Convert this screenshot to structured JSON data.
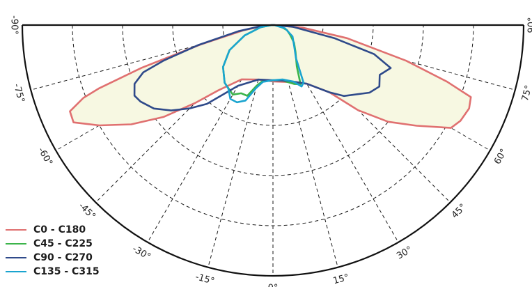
{
  "chart_data": {
    "type": "polar",
    "title": "",
    "angle_labels": [
      {
        "deg": -90,
        "text": "-90°"
      },
      {
        "deg": -75,
        "text": "-75°"
      },
      {
        "deg": -60,
        "text": "-60°"
      },
      {
        "deg": -45,
        "text": "-45°"
      },
      {
        "deg": -30,
        "text": "-30°"
      },
      {
        "deg": -15,
        "text": "-15°"
      },
      {
        "deg": 0,
        "text": "0°"
      },
      {
        "deg": 15,
        "text": "15°"
      },
      {
        "deg": 30,
        "text": "30°"
      },
      {
        "deg": 45,
        "text": "45°"
      },
      {
        "deg": 60,
        "text": "60°"
      },
      {
        "deg": 75,
        "text": "75°"
      },
      {
        "deg": 90,
        "text": "90°"
      }
    ],
    "grid": true,
    "legend_position": "bottom-left",
    "series": [
      {
        "name": "C0 - C180",
        "color": "#e07070",
        "fill": "#f7f8e2",
        "points": [
          [
            -90,
            0.005
          ],
          [
            -85,
            0.04
          ],
          [
            -80,
            0.12
          ],
          [
            -75,
            0.3
          ],
          [
            -72,
            0.55
          ],
          [
            -70,
            0.74
          ],
          [
            -69,
            0.81
          ],
          [
            -67,
            0.88
          ],
          [
            -64,
            0.885
          ],
          [
            -60,
            0.8
          ],
          [
            -55,
            0.69
          ],
          [
            -50,
            0.57
          ],
          [
            -45,
            0.44
          ],
          [
            -40,
            0.34
          ],
          [
            -30,
            0.25
          ],
          [
            -15,
            0.225
          ],
          [
            0,
            0.225
          ],
          [
            15,
            0.235
          ],
          [
            30,
            0.27
          ],
          [
            40,
            0.35
          ],
          [
            45,
            0.48
          ],
          [
            50,
            0.6
          ],
          [
            55,
            0.7
          ],
          [
            60,
            0.82
          ],
          [
            63,
            0.84
          ],
          [
            67,
            0.85
          ],
          [
            70,
            0.84
          ],
          [
            72,
            0.73
          ],
          [
            75,
            0.55
          ],
          [
            80,
            0.3
          ],
          [
            85,
            0.12
          ],
          [
            90,
            0.005
          ]
        ]
      },
      {
        "name": "C45 - C225",
        "color": "#3cb44a",
        "points": [
          [
            -90,
            0.005
          ],
          [
            -80,
            0.05
          ],
          [
            -70,
            0.12
          ],
          [
            -60,
            0.2
          ],
          [
            -50,
            0.26
          ],
          [
            -40,
            0.3
          ],
          [
            -30,
            0.32
          ],
          [
            -25,
            0.3
          ],
          [
            -20,
            0.3
          ],
          [
            -15,
            0.25
          ],
          [
            -10,
            0.225
          ],
          [
            0,
            0.22
          ],
          [
            10,
            0.225
          ],
          [
            20,
            0.25
          ],
          [
            25,
            0.26
          ],
          [
            30,
            0.19
          ],
          [
            40,
            0.14
          ],
          [
            50,
            0.11
          ],
          [
            60,
            0.08
          ],
          [
            70,
            0.06
          ],
          [
            80,
            0.03
          ],
          [
            90,
            0.005
          ]
        ]
      },
      {
        "name": "C90 - C270",
        "color": "#2f4a8a",
        "points": [
          [
            -90,
            0.005
          ],
          [
            -85,
            0.05
          ],
          [
            -80,
            0.14
          ],
          [
            -75,
            0.31
          ],
          [
            -72,
            0.46
          ],
          [
            -70,
            0.55
          ],
          [
            -67,
            0.6
          ],
          [
            -63,
            0.62
          ],
          [
            -60,
            0.61
          ],
          [
            -55,
            0.58
          ],
          [
            -50,
            0.53
          ],
          [
            -45,
            0.47
          ],
          [
            -40,
            0.41
          ],
          [
            -30,
            0.28
          ],
          [
            -15,
            0.225
          ],
          [
            0,
            0.22
          ],
          [
            15,
            0.23
          ],
          [
            30,
            0.27
          ],
          [
            40,
            0.35
          ],
          [
            45,
            0.4
          ],
          [
            55,
            0.47
          ],
          [
            60,
            0.49
          ],
          [
            65,
            0.47
          ],
          [
            70,
            0.5
          ],
          [
            74,
            0.42
          ],
          [
            78,
            0.25
          ],
          [
            85,
            0.08
          ],
          [
            90,
            0.005
          ]
        ]
      },
      {
        "name": "C135 - C315",
        "color": "#1aa4cf",
        "points": [
          [
            -90,
            0.005
          ],
          [
            -80,
            0.05
          ],
          [
            -70,
            0.12
          ],
          [
            -60,
            0.2
          ],
          [
            -50,
            0.26
          ],
          [
            -40,
            0.3
          ],
          [
            -35,
            0.31
          ],
          [
            -30,
            0.34
          ],
          [
            -25,
            0.34
          ],
          [
            -20,
            0.32
          ],
          [
            -15,
            0.26
          ],
          [
            -10,
            0.23
          ],
          [
            0,
            0.22
          ],
          [
            10,
            0.22
          ],
          [
            20,
            0.24
          ],
          [
            25,
            0.27
          ],
          [
            28,
            0.26
          ],
          [
            35,
            0.16
          ],
          [
            45,
            0.12
          ],
          [
            60,
            0.09
          ],
          [
            75,
            0.05
          ],
          [
            90,
            0.005
          ]
        ]
      }
    ]
  }
}
